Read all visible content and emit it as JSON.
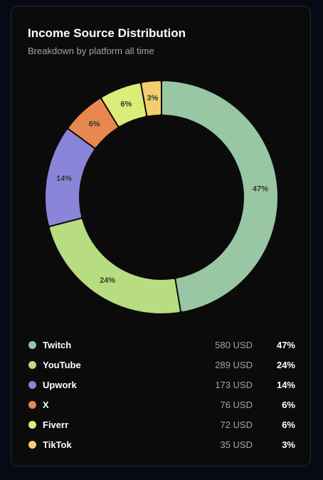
{
  "card": {
    "title": "Income Source Distribution",
    "subtitle": "Breakdown by platform all time"
  },
  "chart_data": {
    "type": "pie",
    "title": "Income Source Distribution",
    "subtitle": "Breakdown by platform all time",
    "unit": "USD",
    "slices": [
      {
        "name": "Twitch",
        "value": 580,
        "percent": 47,
        "label": "47%",
        "color": "#99c6a3"
      },
      {
        "name": "YouTube",
        "value": 289,
        "percent": 24,
        "label": "24%",
        "color": "#b8dc80"
      },
      {
        "name": "Upwork",
        "value": 173,
        "percent": 14,
        "label": "14%",
        "color": "#8a85d8"
      },
      {
        "name": "X",
        "value": 76,
        "percent": 6,
        "label": "6%",
        "color": "#e8874e"
      },
      {
        "name": "Fiverr",
        "value": 72,
        "percent": 6,
        "label": "6%",
        "color": "#dcec78"
      },
      {
        "name": "TikTok",
        "value": 35,
        "percent": 3,
        "label": "3%",
        "color": "#f3cd6e"
      }
    ],
    "legend_position": "bottom"
  },
  "legend": [
    {
      "name": "Twitch",
      "amount": "580 USD",
      "pct": "47%"
    },
    {
      "name": "YouTube",
      "amount": "289 USD",
      "pct": "24%"
    },
    {
      "name": "Upwork",
      "amount": "173 USD",
      "pct": "14%"
    },
    {
      "name": "X",
      "amount": "76 USD",
      "pct": "6%"
    },
    {
      "name": "Fiverr",
      "amount": "72 USD",
      "pct": "6%"
    },
    {
      "name": "TikTok",
      "amount": "35 USD",
      "pct": "3%"
    }
  ]
}
